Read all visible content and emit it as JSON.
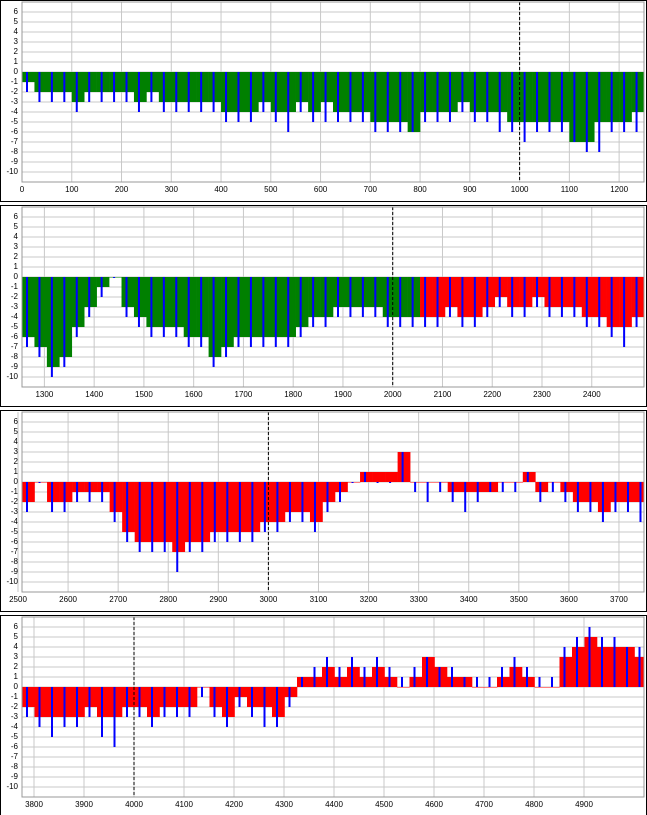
{
  "chart_data": [
    {
      "type": "area",
      "xlim": [
        0,
        1250
      ],
      "ylim": [
        -11,
        7
      ],
      "xticks": [
        0,
        100,
        200,
        300,
        400,
        500,
        600,
        700,
        800,
        900,
        1000,
        1100,
        1200
      ],
      "yticks": [
        6,
        5,
        4,
        3,
        2,
        1,
        0,
        -1,
        -2,
        -3,
        -4,
        -5,
        -6,
        -7,
        -8,
        -9,
        -10
      ],
      "grid": true,
      "vline": 1000,
      "x": [
        0,
        25,
        50,
        75,
        100,
        125,
        150,
        175,
        200,
        225,
        250,
        275,
        300,
        325,
        350,
        375,
        400,
        425,
        450,
        475,
        500,
        525,
        550,
        575,
        600,
        625,
        650,
        675,
        700,
        725,
        750,
        775,
        800,
        825,
        850,
        875,
        900,
        925,
        950,
        975,
        1000,
        1025,
        1050,
        1075,
        1100,
        1125,
        1150,
        1175,
        1200,
        1225
      ],
      "series": [
        {
          "kind": "area",
          "color": "#008000",
          "values": [
            -1,
            -2,
            -2,
            -2,
            -3,
            -2,
            -2,
            -2,
            -2,
            -3,
            -2,
            -3,
            -3,
            -3,
            -3,
            -3,
            -4,
            -4,
            -4,
            -3,
            -4,
            -4,
            -3,
            -4,
            -3,
            -4,
            -4,
            -4,
            -5,
            -5,
            -5,
            -6,
            -4,
            -4,
            -4,
            -3,
            -4,
            -4,
            -4,
            -5,
            -5,
            -5,
            -5,
            -5,
            -7,
            -7,
            -5,
            -5,
            -5,
            -4
          ]
        },
        {
          "kind": "spike",
          "color": "#0000ff",
          "values": [
            -2,
            -3,
            -3,
            -3,
            -4,
            -3,
            -3,
            -3,
            -3,
            -4,
            -3,
            -4,
            -4,
            -4,
            -4,
            -4,
            -5,
            -5,
            -5,
            -4,
            -5,
            -6,
            -4,
            -5,
            -5,
            -5,
            -5,
            -5,
            -6,
            -6,
            -6,
            -6,
            -5,
            -5,
            -5,
            -4,
            -5,
            -5,
            -6,
            -6,
            -7,
            -6,
            -6,
            -6,
            -7,
            -8,
            -8,
            -6,
            -6,
            -6
          ]
        }
      ]
    },
    {
      "type": "area",
      "xlim": [
        1255,
        2505
      ],
      "ylim": [
        -11,
        7
      ],
      "xticks": [
        1300,
        1400,
        1500,
        1600,
        1700,
        1800,
        1900,
        2000,
        2100,
        2200,
        2300,
        2400
      ],
      "yticks": [
        6,
        5,
        4,
        3,
        2,
        1,
        0,
        -1,
        -2,
        -3,
        -4,
        -5,
        -6,
        -7,
        -8,
        -9,
        -10
      ],
      "grid": true,
      "vline": 2000,
      "x": [
        1255,
        1280,
        1305,
        1330,
        1355,
        1380,
        1405,
        1430,
        1455,
        1480,
        1505,
        1530,
        1555,
        1580,
        1605,
        1630,
        1655,
        1680,
        1705,
        1730,
        1755,
        1780,
        1805,
        1830,
        1855,
        1880,
        1905,
        1930,
        1955,
        1980,
        2005,
        2030,
        2055,
        2080,
        2105,
        2130,
        2155,
        2180,
        2205,
        2230,
        2255,
        2280,
        2305,
        2330,
        2355,
        2380,
        2405,
        2430,
        2455,
        2480
      ],
      "series": [
        {
          "kind": "area",
          "color": "#008000",
          "values": [
            -6,
            -7,
            -9,
            -8,
            -5,
            -3,
            -1,
            0,
            -3,
            -4,
            -5,
            -5,
            -5,
            -6,
            -6,
            -8,
            -7,
            -6,
            -6,
            -6,
            -6,
            -6,
            -5,
            -4,
            -4,
            -3,
            -3,
            -3,
            -3,
            -4,
            -4,
            -4,
            null,
            null,
            null,
            null,
            null,
            null,
            null,
            null,
            null,
            null,
            null,
            null,
            null,
            null,
            null,
            null,
            null,
            null
          ]
        },
        {
          "kind": "area",
          "color": "#ff0000",
          "values": [
            null,
            null,
            null,
            null,
            null,
            null,
            null,
            null,
            null,
            null,
            null,
            null,
            null,
            null,
            null,
            null,
            null,
            null,
            null,
            null,
            null,
            null,
            null,
            null,
            null,
            null,
            null,
            null,
            null,
            null,
            null,
            null,
            -4,
            -4,
            -3,
            -4,
            -4,
            -3,
            -2,
            -3,
            -3,
            -2,
            -3,
            -3,
            -3,
            -4,
            -4,
            -5,
            -5,
            -4
          ]
        },
        {
          "kind": "spike",
          "color": "#0000ff",
          "values": [
            -7,
            -8,
            -10,
            -9,
            -6,
            -4,
            -2,
            0,
            -4,
            -5,
            -6,
            -6,
            -6,
            -7,
            -7,
            -9,
            -8,
            -7,
            -7,
            -7,
            -7,
            -7,
            -6,
            -5,
            -5,
            -4,
            -4,
            -4,
            -4,
            -5,
            -5,
            -5,
            -5,
            -5,
            -4,
            -5,
            -5,
            -4,
            -3,
            -4,
            -4,
            -3,
            -4,
            -4,
            -4,
            -5,
            -5,
            -6,
            -7,
            -5
          ]
        }
      ]
    },
    {
      "type": "area",
      "xlim": [
        2508,
        3750
      ],
      "ylim": [
        -11,
        7
      ],
      "xticks": [
        2500,
        2600,
        2700,
        2800,
        2900,
        3000,
        3100,
        3200,
        3300,
        3400,
        3500,
        3600,
        3700
      ],
      "yticks": [
        6,
        5,
        4,
        3,
        2,
        1,
        0,
        -1,
        -2,
        -3,
        -4,
        -5,
        -6,
        -7,
        -8,
        -9,
        -10
      ],
      "grid": true,
      "vline": 3000,
      "x": [
        2508,
        2533,
        2558,
        2583,
        2608,
        2633,
        2658,
        2683,
        2708,
        2733,
        2758,
        2783,
        2808,
        2833,
        2858,
        2883,
        2908,
        2933,
        2958,
        2983,
        3008,
        3033,
        3058,
        3083,
        3108,
        3133,
        3158,
        3183,
        3208,
        3233,
        3258,
        3283,
        3308,
        3333,
        3358,
        3383,
        3408,
        3433,
        3458,
        3483,
        3508,
        3533,
        3558,
        3583,
        3608,
        3633,
        3658,
        3683,
        3708,
        3733
      ],
      "series": [
        {
          "kind": "area",
          "color": "#ff0000",
          "values": [
            -2,
            0,
            -2,
            -2,
            -1,
            -1,
            -1,
            -3,
            -5,
            -6,
            -6,
            -6,
            -7,
            -6,
            -6,
            -5,
            -5,
            -5,
            -5,
            -4,
            -4,
            -3,
            -3,
            -4,
            -2,
            -1,
            0,
            1,
            1,
            1,
            3,
            0,
            0,
            0,
            -1,
            -1,
            -1,
            -1,
            0,
            0,
            1,
            -1,
            0,
            -1,
            -2,
            -2,
            -3,
            -2,
            -2,
            -2
          ]
        },
        {
          "kind": "spike",
          "color": "#0000ff",
          "values": [
            -3,
            0,
            -3,
            -3,
            -2,
            -2,
            -2,
            -4,
            -6,
            -7,
            -7,
            -7,
            -9,
            -7,
            -7,
            -6,
            -6,
            -6,
            -6,
            -5,
            -5,
            -4,
            -4,
            -5,
            -3,
            -2,
            0,
            1,
            0,
            0,
            3,
            -1,
            -2,
            -1,
            -2,
            -3,
            -2,
            -1,
            -1,
            -1,
            1,
            -2,
            -1,
            -2,
            -3,
            -3,
            -4,
            -3,
            -3,
            -4
          ]
        }
      ]
    },
    {
      "type": "area",
      "xlim": [
        3776,
        5020
      ],
      "ylim": [
        -11,
        7
      ],
      "xticks": [
        3800,
        3900,
        4000,
        4100,
        4200,
        4300,
        4400,
        4500,
        4600,
        4700,
        4800,
        4900
      ],
      "yticks": [
        6,
        5,
        4,
        3,
        2,
        1,
        0,
        -1,
        -2,
        -3,
        -4,
        -5,
        -6,
        -7,
        -8,
        -9,
        -10
      ],
      "grid": true,
      "vline": 4000,
      "x": [
        3776,
        3801,
        3826,
        3851,
        3876,
        3901,
        3926,
        3951,
        3976,
        4001,
        4026,
        4051,
        4076,
        4101,
        4126,
        4151,
        4176,
        4201,
        4226,
        4251,
        4276,
        4301,
        4326,
        4351,
        4376,
        4401,
        4426,
        4451,
        4476,
        4501,
        4526,
        4551,
        4576,
        4601,
        4626,
        4651,
        4676,
        4701,
        4726,
        4751,
        4776,
        4801,
        4826,
        4851,
        4876,
        4901,
        4926,
        4951,
        4976,
        5001
      ],
      "series": [
        {
          "kind": "area",
          "color": "#ff0000",
          "values": [
            -2,
            -3,
            -3,
            -3,
            -3,
            -2,
            -3,
            -3,
            -2,
            -2,
            -3,
            -2,
            -2,
            -2,
            0,
            -2,
            -3,
            -1,
            -2,
            -2,
            -3,
            -1,
            1,
            1,
            2,
            1,
            2,
            1,
            2,
            1,
            0,
            1,
            3,
            2,
            1,
            1,
            0,
            0,
            1,
            2,
            1,
            0,
            0,
            3,
            4,
            5,
            4,
            4,
            4,
            3
          ]
        },
        {
          "kind": "spike",
          "color": "#0000ff",
          "values": [
            -3,
            -4,
            -5,
            -4,
            -4,
            -3,
            -5,
            -6,
            -3,
            -3,
            -4,
            -3,
            -3,
            -3,
            -1,
            -3,
            -4,
            -2,
            -3,
            -4,
            -4,
            -2,
            1,
            2,
            3,
            2,
            3,
            2,
            3,
            2,
            1,
            2,
            3,
            2,
            2,
            1,
            1,
            1,
            2,
            3,
            2,
            1,
            1,
            4,
            5,
            6,
            5,
            5,
            4,
            4
          ]
        }
      ]
    }
  ]
}
